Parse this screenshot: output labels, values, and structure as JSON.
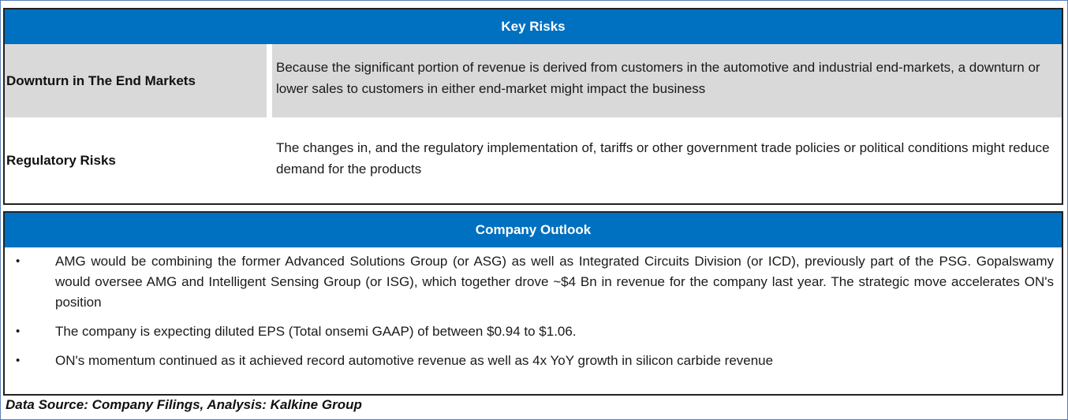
{
  "key_risks": {
    "title": "Key Risks",
    "rows": [
      {
        "label": "Downturn in The End Markets",
        "description": "Because the significant portion of revenue is derived from customers in the automotive and industrial end-markets, a downturn or lower sales to customers in either end-market might impact the business"
      },
      {
        "label": "Regulatory Risks",
        "description": "The changes in, and the regulatory implementation of, tariffs or other government trade policies or political conditions might reduce demand for the products"
      }
    ]
  },
  "company_outlook": {
    "title": "Company Outlook",
    "bullet": "•",
    "items": [
      "AMG would be combining the former Advanced Solutions Group (or ASG) as well as Integrated Circuits Division (or ICD), previously part of the PSG. Gopalswamy would oversee AMG and Intelligent Sensing Group (or ISG), which together drove ~$4 Bn in revenue for the company last year. The strategic move accelerates ON's position",
      "The company is expecting diluted EPS (Total onsemi GAAP) of between $0.94 to $1.06.",
      "ON's momentum continued as it achieved record automotive revenue as well as 4x YoY growth in silicon carbide revenue"
    ]
  },
  "source_note": "Data Source: Company Filings, Analysis: Kalkine Group",
  "colors": {
    "header_blue": "#0070c0",
    "row_grey": "#d9d9d9"
  }
}
